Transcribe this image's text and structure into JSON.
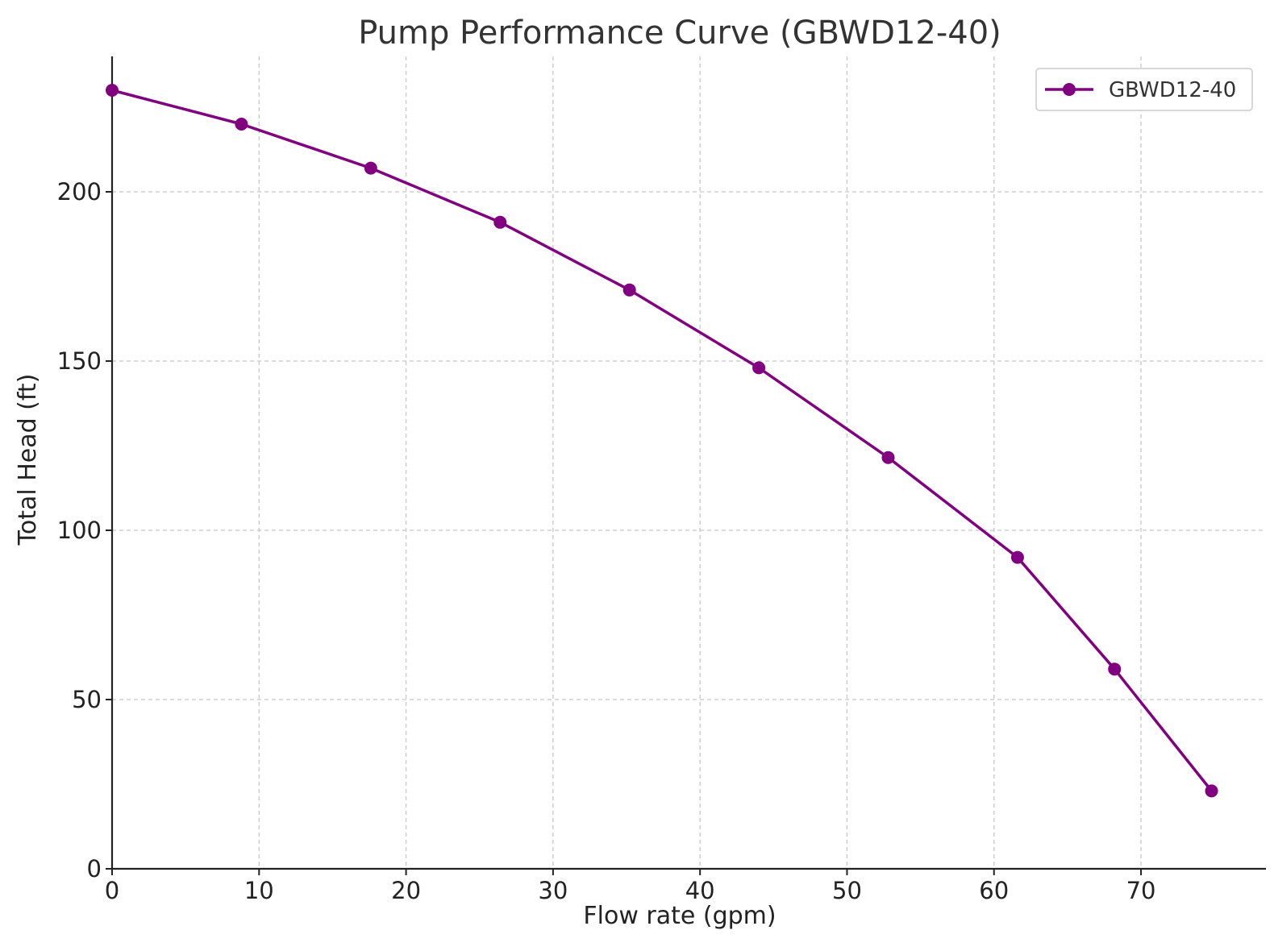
{
  "chart_data": {
    "type": "line",
    "title": "Pump Performance Curve (GBWD12-40)",
    "xlabel": "Flow rate (gpm)",
    "ylabel": "Total Head (ft)",
    "xlim": [
      0,
      78.5
    ],
    "ylim": [
      0,
      240
    ],
    "xticks": [
      0,
      10,
      20,
      30,
      40,
      50,
      60,
      70
    ],
    "yticks": [
      0,
      50,
      100,
      150,
      200
    ],
    "grid": true,
    "legend_position": "top-right",
    "series": [
      {
        "name": "GBWD12-40",
        "color": "#800080",
        "marker": "circle",
        "x": [
          0,
          8.8,
          17.6,
          26.4,
          35.2,
          44.0,
          52.8,
          61.6,
          68.2,
          74.8
        ],
        "y": [
          230,
          220,
          207,
          191,
          171,
          148,
          121.5,
          92,
          59,
          23
        ]
      }
    ]
  }
}
